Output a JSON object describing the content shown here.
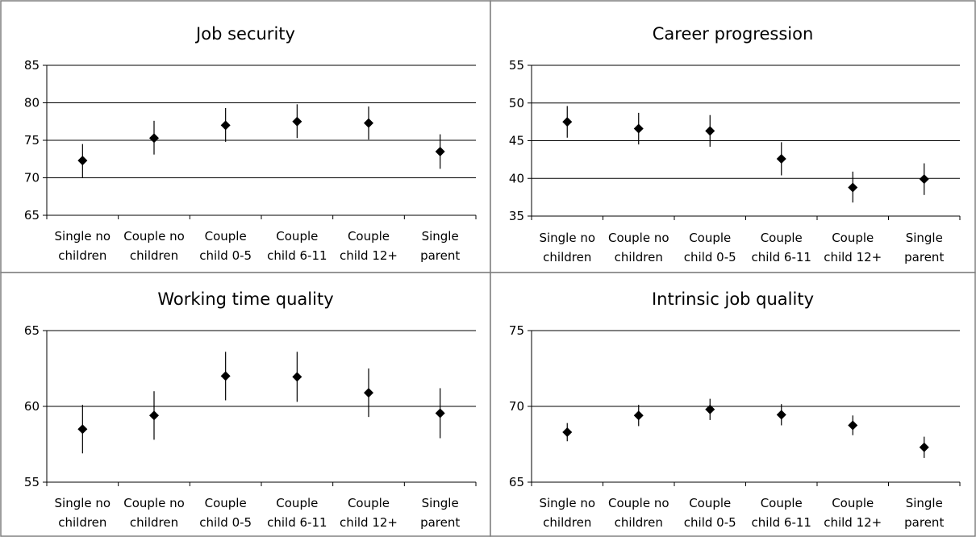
{
  "chart_data": [
    {
      "type": "scatter",
      "title": "Job security",
      "categories": [
        "Single no children",
        "Couple no children",
        "Couple child 0-5",
        "Couple child 6-11",
        "Couple child 12+",
        "Single parent"
      ],
      "category_lines": [
        [
          "Single no",
          "children"
        ],
        [
          "Couple no",
          "children"
        ],
        [
          "Couple",
          "child 0-5"
        ],
        [
          "Couple",
          "child 6-11"
        ],
        [
          "Couple",
          "child 12+"
        ],
        [
          "Single",
          "parent"
        ]
      ],
      "values": [
        72.3,
        75.3,
        77.0,
        77.5,
        77.3,
        73.5
      ],
      "error_low": [
        70.0,
        73.1,
        74.8,
        75.3,
        75.1,
        71.2
      ],
      "error_high": [
        74.5,
        77.6,
        79.3,
        79.8,
        79.5,
        75.8
      ],
      "ylim": [
        65,
        85
      ],
      "yticks": [
        65,
        70,
        75,
        80,
        85
      ],
      "grid": true
    },
    {
      "type": "scatter",
      "title": "Career progression",
      "categories": [
        "Single no children",
        "Couple no children",
        "Couple child 0-5",
        "Couple child 6-11",
        "Couple child 12+",
        "Single parent"
      ],
      "category_lines": [
        [
          "Single no",
          "children"
        ],
        [
          "Couple no",
          "children"
        ],
        [
          "Couple",
          "child 0-5"
        ],
        [
          "Couple",
          "child 6-11"
        ],
        [
          "Couple",
          "child 12+"
        ],
        [
          "Single",
          "parent"
        ]
      ],
      "values": [
        47.5,
        46.6,
        46.3,
        42.6,
        38.8,
        39.9
      ],
      "error_low": [
        45.4,
        44.5,
        44.2,
        40.4,
        36.8,
        37.8
      ],
      "error_high": [
        49.6,
        48.7,
        48.4,
        44.8,
        40.9,
        42.0
      ],
      "ylim": [
        35,
        55
      ],
      "yticks": [
        35,
        40,
        45,
        50,
        55
      ],
      "grid": true
    },
    {
      "type": "scatter",
      "title": "Working time quality",
      "categories": [
        "Single no children",
        "Couple no children",
        "Couple child 0-5",
        "Couple child 6-11",
        "Couple child 12+",
        "Single parent"
      ],
      "category_lines": [
        [
          "Single no",
          "children"
        ],
        [
          "Couple no",
          "children"
        ],
        [
          "Couple",
          "child 0-5"
        ],
        [
          "Couple",
          "child 6-11"
        ],
        [
          "Couple",
          "child 12+"
        ],
        [
          "Single",
          "parent"
        ]
      ],
      "values": [
        58.5,
        59.4,
        62.0,
        61.95,
        60.9,
        59.55
      ],
      "error_low": [
        56.9,
        57.8,
        60.4,
        60.3,
        59.3,
        57.9
      ],
      "error_high": [
        60.1,
        61.0,
        63.6,
        63.6,
        62.5,
        61.2
      ],
      "ylim": [
        55,
        65
      ],
      "yticks": [
        55,
        60,
        65
      ],
      "grid": true
    },
    {
      "type": "scatter",
      "title": "Intrinsic job quality",
      "categories": [
        "Single no children",
        "Couple no children",
        "Couple child 0-5",
        "Couple child 6-11",
        "Couple child 12+",
        "Single parent"
      ],
      "category_lines": [
        [
          "Single no",
          "children"
        ],
        [
          "Couple no",
          "children"
        ],
        [
          "Couple",
          "child 0-5"
        ],
        [
          "Couple",
          "child 6-11"
        ],
        [
          "Couple",
          "child 12+"
        ],
        [
          "Single",
          "parent"
        ]
      ],
      "values": [
        68.3,
        69.4,
        69.8,
        69.45,
        68.75,
        67.3
      ],
      "error_low": [
        67.7,
        68.7,
        69.1,
        68.75,
        68.1,
        66.6
      ],
      "error_high": [
        68.9,
        70.1,
        70.5,
        70.15,
        69.4,
        68.0
      ],
      "ylim": [
        65,
        75
      ],
      "yticks": [
        65,
        70,
        75
      ],
      "grid": true
    }
  ]
}
